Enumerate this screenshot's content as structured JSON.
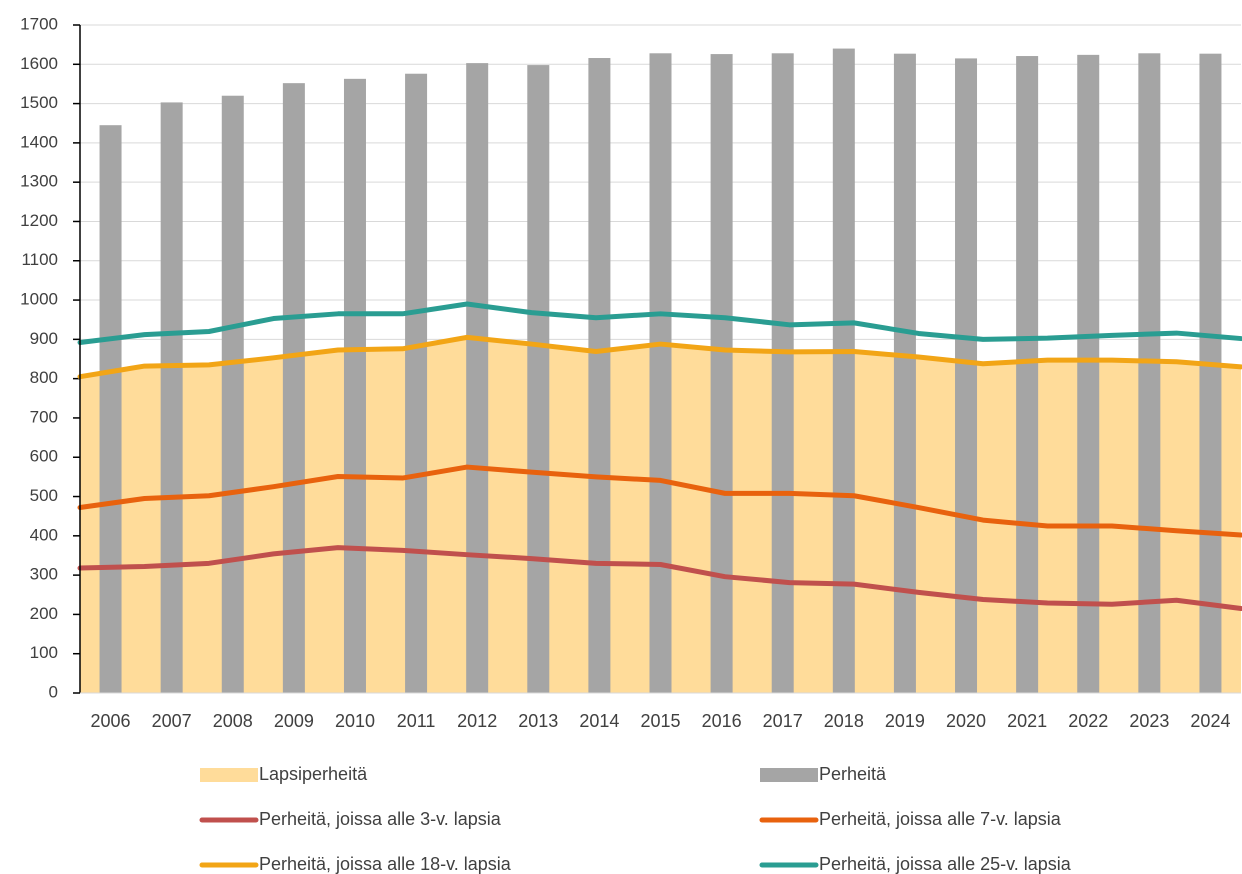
{
  "chart_data": {
    "type": "bar",
    "categories": [
      "2006",
      "2007",
      "2008",
      "2009",
      "2010",
      "2011",
      "2012",
      "2013",
      "2014",
      "2015",
      "2016",
      "2017",
      "2018",
      "2019",
      "2020",
      "2021",
      "2022",
      "2023",
      "2024"
    ],
    "series": [
      {
        "name": "Lapsiperheitä",
        "type": "area",
        "color": "#ffdc9a",
        "values": [
          805,
          832,
          835,
          853,
          873,
          876,
          905,
          888,
          869,
          888,
          873,
          868,
          869,
          855,
          838,
          847,
          847,
          843,
          830
        ]
      },
      {
        "name": "Perheitä",
        "type": "bar",
        "color": "#a5a5a5",
        "values": [
          1445,
          1503,
          1520,
          1552,
          1563,
          1576,
          1603,
          1598,
          1616,
          1628,
          1626,
          1628,
          1640,
          1627,
          1615,
          1621,
          1624,
          1628,
          1627
        ]
      },
      {
        "name": "Perheitä, joissa alle 3-v. lapsia",
        "type": "line",
        "color": "#c0504d",
        "values": [
          318,
          322,
          330,
          354,
          370,
          363,
          352,
          342,
          330,
          327,
          296,
          281,
          277,
          256,
          238,
          229,
          226,
          236,
          215
        ]
      },
      {
        "name": "Perheitä, joissa alle 7-v. lapsia",
        "type": "line",
        "color": "#e8620e",
        "values": [
          472,
          495,
          502,
          525,
          551,
          547,
          575,
          562,
          550,
          541,
          508,
          508,
          502,
          472,
          440,
          425,
          425,
          413,
          402
        ]
      },
      {
        "name": "Perheitä, joissa alle 18-v. lapsia",
        "type": "line",
        "color": "#f2a516",
        "values": [
          805,
          832,
          835,
          853,
          873,
          876,
          905,
          888,
          869,
          888,
          873,
          868,
          869,
          855,
          838,
          847,
          847,
          843,
          830
        ]
      },
      {
        "name": "Perheitä, joissa alle 25-v. lapsia",
        "type": "line",
        "color": "#2a9d92",
        "values": [
          892,
          912,
          920,
          953,
          965,
          965,
          990,
          968,
          955,
          965,
          955,
          937,
          942,
          915,
          900,
          903,
          910,
          916,
          902
        ]
      }
    ],
    "ylim": [
      0,
      1700
    ],
    "yticks": [
      0,
      100,
      200,
      300,
      400,
      500,
      600,
      700,
      800,
      900,
      1000,
      1100,
      1200,
      1300,
      1400,
      1500,
      1600,
      1700
    ],
    "grid": true,
    "legend": "bottom"
  }
}
